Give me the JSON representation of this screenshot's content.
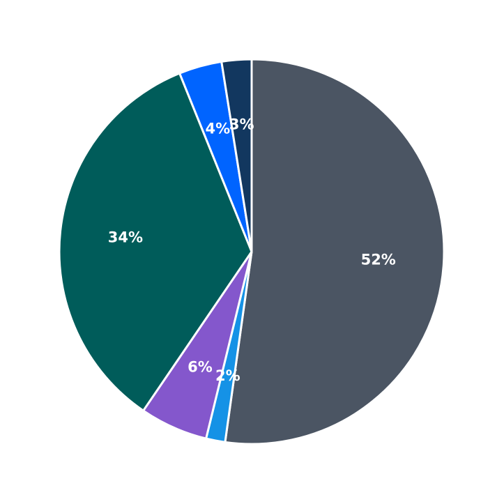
{
  "chart_data": {
    "type": "pie",
    "title": "",
    "start_angle_deg": 90,
    "direction": "clockwise",
    "slices": [
      {
        "label": "52%",
        "value": 52.1,
        "color": "#4b5563"
      },
      {
        "label": "2%",
        "value": 1.6,
        "color": "#1592e6"
      },
      {
        "label": "6%",
        "value": 5.7,
        "color": "#8457cc"
      },
      {
        "label": "34%",
        "value": 34.3,
        "color": "#005c5a"
      },
      {
        "label": "4%",
        "value": 3.6,
        "color": "#0064ff"
      },
      {
        "label": "3%",
        "value": 2.5,
        "color": "#12375f"
      }
    ],
    "legend": null,
    "center": [
      361,
      361
    ],
    "radius": 276,
    "label_radius_frac": 0.66
  }
}
